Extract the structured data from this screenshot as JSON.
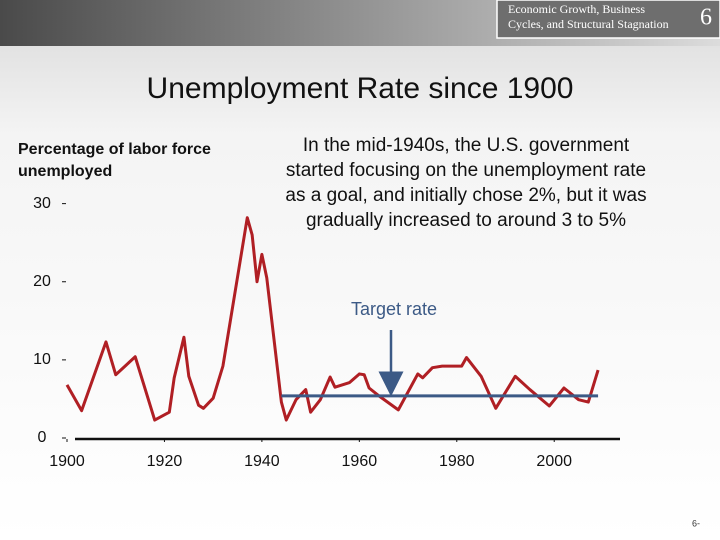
{
  "header": {
    "book_title": [
      "Economic Growth, Business",
      "Cycles, and Structural Stagnation"
    ],
    "chapter": "6"
  },
  "footer": {
    "page": "6-"
  },
  "chart_data": {
    "type": "line",
    "title": "Unemployment Rate since 1900",
    "y_label": [
      "Percentage of labor force",
      "unemployed"
    ],
    "annotation": [
      "In the mid-1940s, the U.S. government",
      "started focusing on the unemployment rate",
      "as a goal, and initially chose 2%, but it was",
      "gradually increased to around 3 to 5%"
    ],
    "x": [
      1900,
      1903,
      1908,
      1910,
      1914,
      1918,
      1921,
      1922,
      1924,
      1925,
      1927,
      1928,
      1930,
      1932,
      1937,
      1938,
      1939,
      1940,
      1941,
      1944,
      1945,
      1947,
      1949,
      1950,
      1952,
      1954,
      1955,
      1958,
      1960,
      1961,
      1962,
      1964,
      1968,
      1972,
      1973,
      1975,
      1977,
      1981,
      1982,
      1985,
      1988,
      1992,
      1995,
      1999,
      2002,
      2005,
      2007,
      2009
    ],
    "series": [
      {
        "color": "#b01f24",
        "values": [
          6.8,
          3.5,
          12.3,
          8.1,
          10.4,
          2.3,
          3.3,
          7.7,
          12.9,
          7.9,
          4.2,
          3.8,
          5.1,
          9.2,
          28.2,
          26,
          20,
          23.5,
          20.5,
          4.6,
          2.3,
          4.9,
          6.2,
          3.3,
          4.9,
          7.8,
          6.5,
          7.1,
          8.2,
          8.1,
          6.4,
          5.4,
          3.6,
          8.2,
          7.7,
          9,
          9.2,
          9.2,
          10.3,
          7.9,
          3.8,
          7.9,
          6.2,
          4.1,
          6.4,
          4.9,
          4.6,
          8.7
        ]
      }
    ],
    "target": {
      "label": "Target rate",
      "value": 5.4,
      "x": [
        1944,
        2009
      ],
      "color": "#3c5a86"
    },
    "xlim": [
      1900,
      2013.5
    ],
    "ylim": [
      0,
      32
    ],
    "xticks": [
      1900,
      1920,
      1940,
      1960,
      1980,
      2000
    ],
    "yticks": [
      0,
      10,
      20,
      30
    ]
  }
}
